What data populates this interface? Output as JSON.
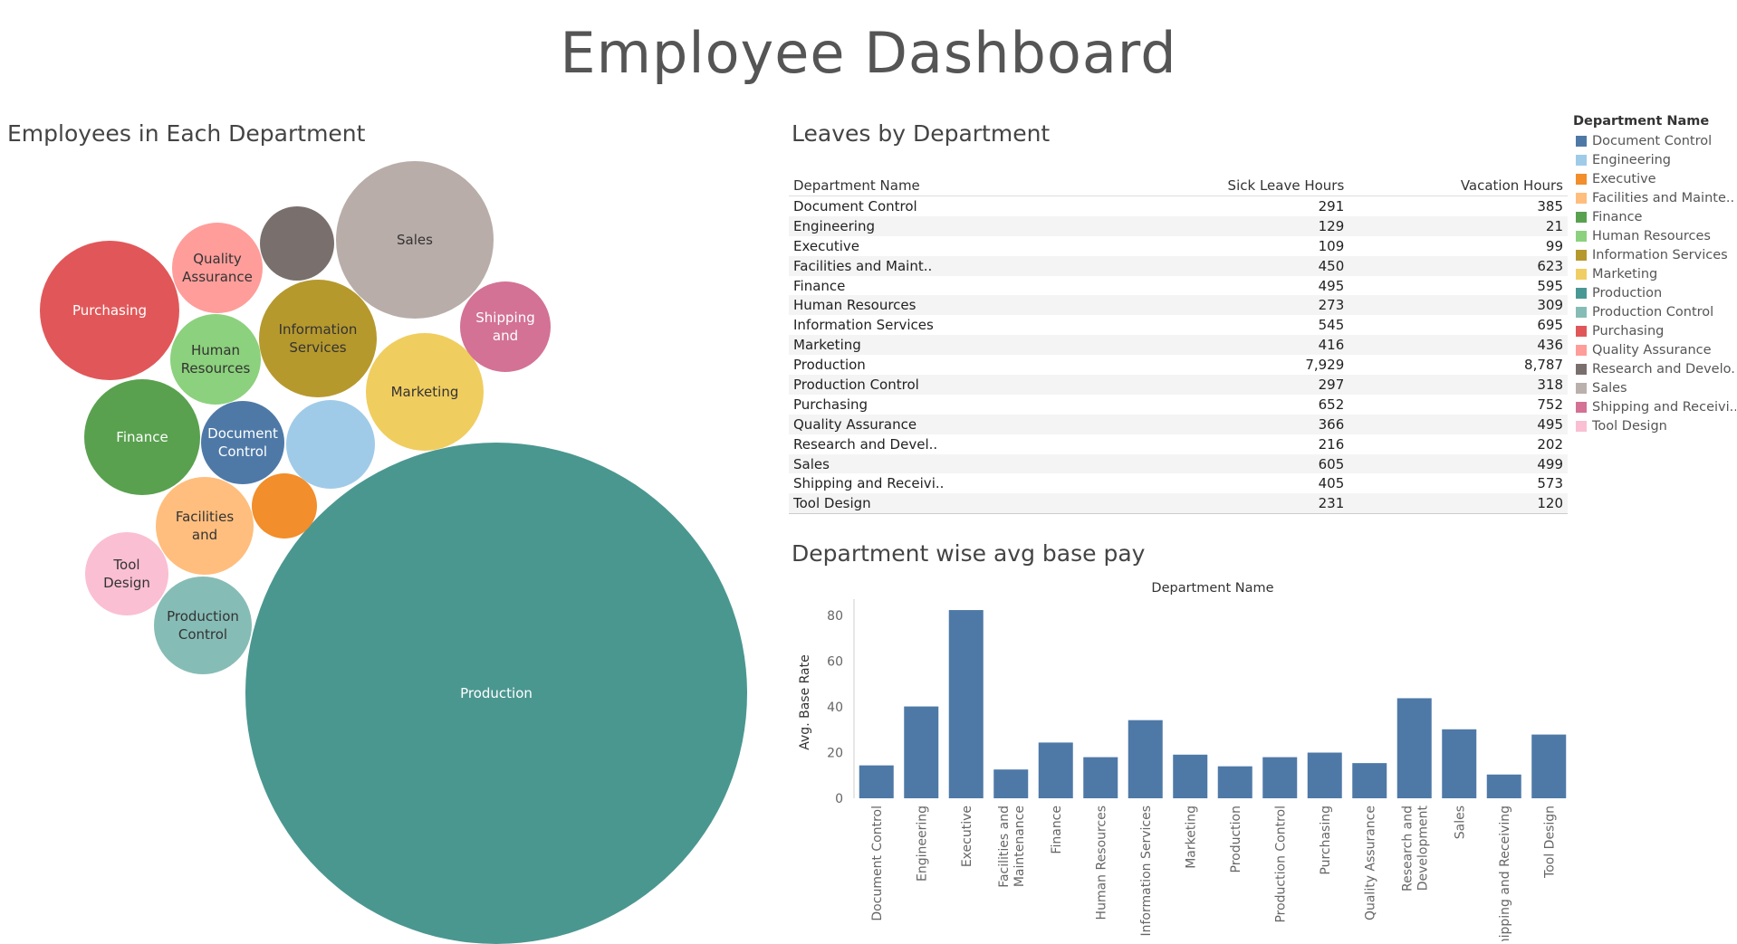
{
  "title": "Employee Dashboard",
  "bubble_chart": {
    "title": "Employees in Each Department",
    "bubbles": [
      {
        "name": "Production",
        "label": "Production",
        "color": "#4a9790"
      },
      {
        "name": "Sales",
        "label": "Sales",
        "color": "#b8ada8"
      },
      {
        "name": "Purchasing",
        "label": "Purchasing",
        "color": "#e15759"
      },
      {
        "name": "Marketing",
        "label": "Marketing",
        "color": "#f0cd5f"
      },
      {
        "name": "Information Services",
        "label": "Information Services",
        "color": "#b6992d"
      },
      {
        "name": "Finance",
        "label": "Finance",
        "color": "#59a14f"
      },
      {
        "name": "Shipping and Receiving",
        "label": "Shipping and",
        "color": "#d37295"
      },
      {
        "name": "Facilities and Maintenance",
        "label": "Facilities and",
        "color": "#ffbe7d"
      },
      {
        "name": "Production Control",
        "label": "Production Control",
        "color": "#86bcb6"
      },
      {
        "name": "Quality Assurance",
        "label": "Quality Assurance",
        "color": "#ff9d9a"
      },
      {
        "name": "Human Resources",
        "label": "Human Resources",
        "color": "#8cd17d"
      },
      {
        "name": "Engineering",
        "label": "",
        "color": "#a0cbe8"
      },
      {
        "name": "Tool Design",
        "label": "Tool Design",
        "color": "#fabfd2"
      },
      {
        "name": "Document Control",
        "label": "Document Control",
        "color": "#4e79a7"
      },
      {
        "name": "Research and Development",
        "label": "",
        "color": "#79706e"
      },
      {
        "name": "Executive",
        "label": "",
        "color": "#f28e2b"
      }
    ]
  },
  "leaves_table": {
    "title": "Leaves by Department",
    "columns": [
      "Department Name",
      "Sick Leave Hours",
      "Vacation Hours"
    ],
    "rows": [
      [
        "Document Control",
        "291",
        "385"
      ],
      [
        "Engineering",
        "129",
        "21"
      ],
      [
        "Executive",
        "109",
        "99"
      ],
      [
        "Facilities and Maint..",
        "450",
        "623"
      ],
      [
        "Finance",
        "495",
        "595"
      ],
      [
        "Human Resources",
        "273",
        "309"
      ],
      [
        "Information Services",
        "545",
        "695"
      ],
      [
        "Marketing",
        "416",
        "436"
      ],
      [
        "Production",
        "7,929",
        "8,787"
      ],
      [
        "Production Control",
        "297",
        "318"
      ],
      [
        "Purchasing",
        "652",
        "752"
      ],
      [
        "Quality Assurance",
        "366",
        "495"
      ],
      [
        "Research and Devel..",
        "216",
        "202"
      ],
      [
        "Sales",
        "605",
        "499"
      ],
      [
        "Shipping and Receivi..",
        "405",
        "573"
      ],
      [
        "Tool Design",
        "231",
        "120"
      ]
    ]
  },
  "legend": {
    "title": "Department Name",
    "items": [
      {
        "label": "Document Control",
        "color": "#4e79a7"
      },
      {
        "label": "Engineering",
        "color": "#a0cbe8"
      },
      {
        "label": "Executive",
        "color": "#f28e2b"
      },
      {
        "label": "Facilities and Mainte..",
        "color": "#ffbe7d"
      },
      {
        "label": "Finance",
        "color": "#59a14f"
      },
      {
        "label": "Human Resources",
        "color": "#8cd17d"
      },
      {
        "label": "Information Services",
        "color": "#b6992d"
      },
      {
        "label": "Marketing",
        "color": "#f1ce63"
      },
      {
        "label": "Production",
        "color": "#499894"
      },
      {
        "label": "Production Control",
        "color": "#86bcb6"
      },
      {
        "label": "Purchasing",
        "color": "#e15759"
      },
      {
        "label": "Quality Assurance",
        "color": "#ff9d9a"
      },
      {
        "label": "Research and Develo..",
        "color": "#79706e"
      },
      {
        "label": "Sales",
        "color": "#bab0ac"
      },
      {
        "label": "Shipping and Receivi..",
        "color": "#d37295"
      },
      {
        "label": "Tool Design",
        "color": "#fabfd2"
      }
    ]
  },
  "chart_data": [
    {
      "type": "bubble",
      "title": "Employees in Each Department",
      "categories": [
        "Production",
        "Sales",
        "Purchasing",
        "Marketing",
        "Information Services",
        "Finance",
        "Shipping and Receiving",
        "Facilities and Maintenance",
        "Production Control",
        "Quality Assurance",
        "Human Resources",
        "Engineering",
        "Tool Design",
        "Document Control",
        "Research and Development",
        "Executive"
      ]
    },
    {
      "type": "table",
      "title": "Leaves by Department",
      "columns": [
        "Department Name",
        "Sick Leave Hours",
        "Vacation Hours"
      ],
      "categories": [
        "Document Control",
        "Engineering",
        "Executive",
        "Facilities and Maint..",
        "Finance",
        "Human Resources",
        "Information Services",
        "Marketing",
        "Production",
        "Production Control",
        "Purchasing",
        "Quality Assurance",
        "Research and Devel..",
        "Sales",
        "Shipping and Receivi..",
        "Tool Design"
      ],
      "series": [
        {
          "name": "Sick Leave Hours",
          "values": [
            291,
            129,
            109,
            450,
            495,
            273,
            545,
            416,
            7929,
            297,
            652,
            366,
            216,
            605,
            405,
            231
          ]
        },
        {
          "name": "Vacation Hours",
          "values": [
            385,
            21,
            99,
            623,
            595,
            309,
            695,
            436,
            8787,
            318,
            752,
            495,
            202,
            499,
            573,
            120
          ]
        }
      ]
    },
    {
      "type": "bar",
      "title": "Department wise avg base pay",
      "xlabel": "Department Name",
      "ylabel": "Avg. Base Rate",
      "ylim": [
        0,
        84
      ],
      "yticks": [
        0,
        20,
        40,
        60,
        80
      ],
      "bar_color": "#4e79a7",
      "categories": [
        "Document Control",
        "Engineering",
        "Executive",
        "Facilities and Maintenance",
        "Finance",
        "Human Resources",
        "Information Services",
        "Marketing",
        "Production",
        "Production Control",
        "Purchasing",
        "Quality Assurance",
        "Research and Development",
        "Sales",
        "Shipping and Receiving",
        "Tool Design"
      ],
      "values": [
        14.4,
        40.2,
        82.4,
        12.6,
        24.4,
        18.0,
        34.2,
        19.1,
        14.0,
        18.0,
        20.0,
        15.4,
        43.8,
        30.2,
        10.4,
        27.9
      ]
    }
  ]
}
